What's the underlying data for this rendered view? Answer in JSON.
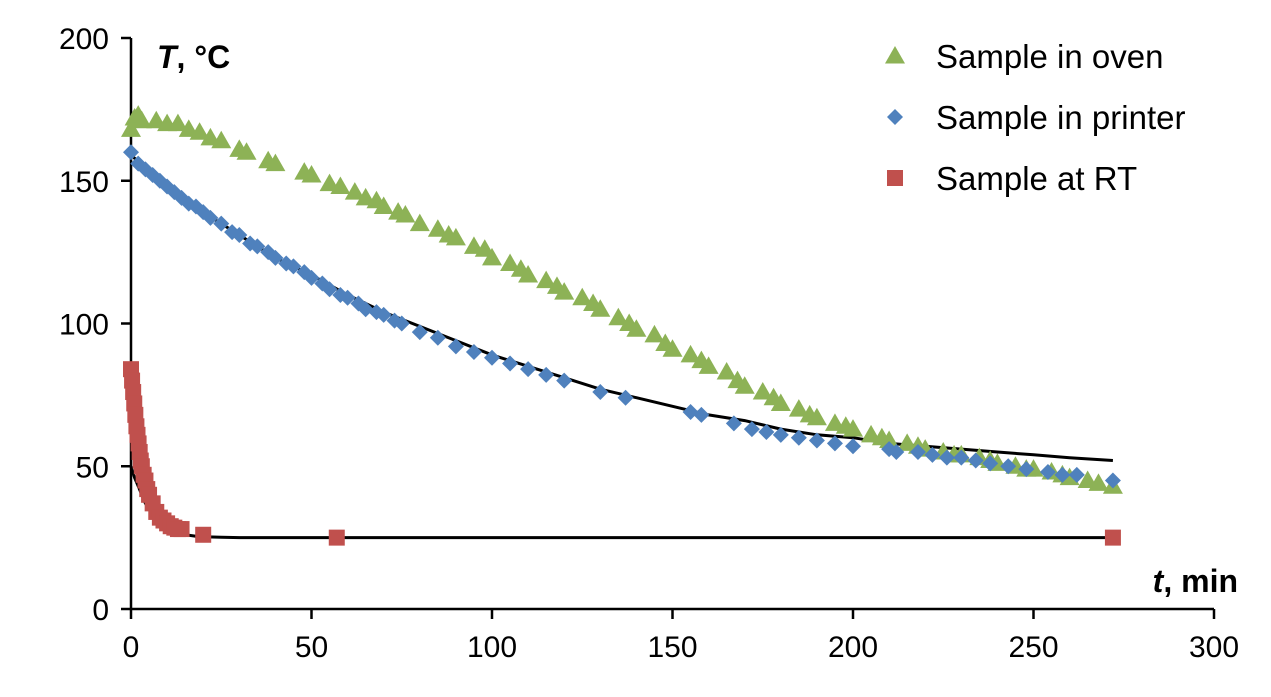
{
  "chart_data": {
    "type": "scatter",
    "title": "",
    "xlabel": {
      "var": "t",
      "unit": ", min"
    },
    "ylabel": {
      "var": "T",
      "unit": ", °C"
    },
    "xlim": [
      0,
      300
    ],
    "ylim": [
      0,
      200
    ],
    "xticks": [
      "0",
      "50",
      "100",
      "150",
      "200",
      "250",
      "300"
    ],
    "yticks": [
      "0",
      "50",
      "100",
      "150",
      "200"
    ],
    "grid": false,
    "legend": "top-right",
    "series": [
      {
        "name": "Sample in oven",
        "marker": "triangle",
        "color": "#8DB256",
        "x": [
          0,
          1,
          2,
          3,
          7,
          10,
          13,
          16,
          19,
          22,
          25,
          30,
          32,
          38,
          40,
          48,
          50,
          55,
          58,
          62,
          65,
          68,
          70,
          74,
          76,
          80,
          85,
          88,
          90,
          95,
          98,
          100,
          105,
          108,
          110,
          115,
          118,
          120,
          125,
          128,
          130,
          135,
          138,
          140,
          145,
          148,
          150,
          155,
          158,
          160,
          165,
          168,
          170,
          175,
          178,
          180,
          185,
          188,
          190,
          195,
          198,
          200,
          205,
          208,
          210,
          215,
          218,
          220,
          225,
          228,
          230,
          235,
          238,
          240,
          245,
          248,
          250,
          255,
          258,
          260,
          265,
          268,
          272
        ],
        "y": [
          168,
          172,
          173,
          171,
          171,
          170,
          170,
          168,
          167,
          165,
          164,
          161,
          160,
          157,
          156,
          153,
          152,
          149,
          148,
          146,
          144,
          143,
          141,
          139,
          138,
          135,
          133,
          131,
          130,
          127,
          126,
          123,
          121,
          119,
          117,
          115,
          113,
          111,
          109,
          107,
          105,
          102,
          100,
          98,
          96,
          93,
          91,
          89,
          87,
          85,
          83,
          80,
          78,
          76,
          74,
          72,
          70,
          68,
          67,
          65,
          64,
          63,
          61,
          60,
          59,
          58,
          57,
          56,
          55,
          54,
          54,
          53,
          52,
          51,
          50,
          49,
          49,
          48,
          47,
          46,
          45,
          44,
          43
        ]
      },
      {
        "name": "Sample in printer",
        "marker": "diamond",
        "color": "#4F81BD",
        "x": [
          0,
          2,
          4,
          6,
          8,
          10,
          12,
          14,
          16,
          18,
          20,
          22,
          25,
          28,
          30,
          33,
          35,
          38,
          40,
          43,
          45,
          48,
          50,
          53,
          55,
          58,
          60,
          63,
          65,
          68,
          70,
          73,
          75,
          80,
          85,
          90,
          95,
          100,
          105,
          110,
          115,
          120,
          130,
          137,
          155,
          158,
          167,
          172,
          176,
          180,
          185,
          190,
          195,
          200,
          210,
          212,
          218,
          222,
          226,
          230,
          234,
          238,
          243,
          248,
          254,
          258,
          262,
          272
        ],
        "y": [
          160,
          156,
          154,
          152,
          150,
          148,
          146,
          144,
          142,
          141,
          139,
          137,
          135,
          132,
          131,
          128,
          127,
          125,
          123,
          121,
          120,
          118,
          116,
          114,
          112,
          110,
          109,
          107,
          105,
          104,
          103,
          101,
          100,
          97,
          95,
          92,
          90,
          88,
          86,
          84,
          82,
          80,
          76,
          74,
          69,
          68,
          65,
          63,
          62,
          61,
          60,
          59,
          58,
          57,
          56,
          55,
          55,
          54,
          53,
          53,
          52,
          51,
          50,
          49,
          48,
          47,
          47,
          45
        ]
      },
      {
        "name": "Sample at RT",
        "marker": "square",
        "color": "#C0504D",
        "x": [
          0,
          0.3,
          0.6,
          0.9,
          1.2,
          1.5,
          1.8,
          2.1,
          2.4,
          2.7,
          3.0,
          3.5,
          4.0,
          4.5,
          5.0,
          6.0,
          7.0,
          8.0,
          9.0,
          10.0,
          11.0,
          12.0,
          13.0,
          14.0,
          20.0,
          57.0,
          272.0
        ],
        "y": [
          84,
          80,
          76,
          72,
          68,
          64,
          61,
          58,
          55,
          52,
          50,
          47,
          45,
          42,
          40,
          37,
          34,
          32,
          31,
          30,
          29,
          28.5,
          28,
          28,
          26,
          25,
          25
        ]
      }
    ],
    "fit_curves": [
      {
        "color": "#000000",
        "x": [
          0,
          10,
          20,
          30,
          40,
          50,
          60,
          70,
          80,
          90,
          100,
          110,
          120,
          130,
          140,
          150,
          160,
          170,
          180,
          190,
          200,
          210,
          220,
          230,
          240,
          250,
          260,
          272
        ],
        "y": [
          159,
          148,
          139,
          131,
          123,
          117,
          110,
          104,
          99,
          94,
          89,
          85,
          81,
          77,
          74,
          71,
          68,
          66,
          63,
          61,
          60,
          58,
          57,
          56,
          55,
          54,
          53,
          52
        ]
      },
      {
        "color": "#000000",
        "x": [
          0,
          1,
          2,
          3,
          4,
          5,
          6,
          7,
          8,
          9,
          10,
          12,
          14,
          16,
          18,
          20,
          25,
          30,
          40,
          60,
          100,
          150,
          200,
          272
        ],
        "y": [
          50,
          46,
          43,
          40,
          37,
          35,
          33,
          31.5,
          30,
          29,
          28,
          27,
          26.2,
          25.8,
          25.5,
          25.3,
          25.1,
          25,
          25,
          25,
          25,
          25,
          25,
          25
        ]
      }
    ]
  }
}
